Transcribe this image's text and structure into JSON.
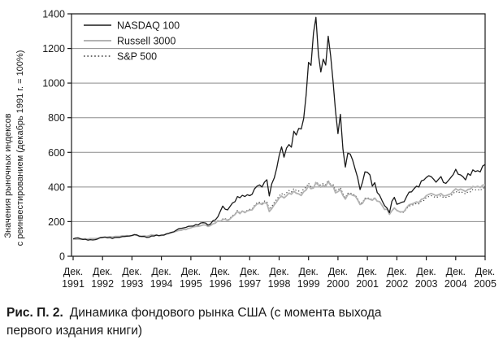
{
  "caption": {
    "label": "Рис. П. 2.",
    "line1": "Динамика фондового рынка США (с момента выхода",
    "line2": "первого издания книги)"
  },
  "chart_data": {
    "type": "line",
    "title": "",
    "ylabel_line1": "Значения рыночных индексов",
    "ylabel_line2": "с реинвестированием (декабрь 1991 г. = 100%)",
    "x_tick_prefix": "Дек.",
    "x_tick_years": [
      "1991",
      "1992",
      "1993",
      "1994",
      "1995",
      "1996",
      "1997",
      "1998",
      "1999",
      "2000",
      "2001",
      "2002",
      "2003",
      "2004",
      "2005"
    ],
    "y_ticks": [
      0,
      200,
      400,
      600,
      800,
      1000,
      1200,
      1400
    ],
    "ylim": [
      0,
      1400
    ],
    "x_frequency": "monthly",
    "x_range": [
      "Дек. 1991",
      "Дек. 2005"
    ],
    "grid": "horizontal",
    "legend_position": "top-left",
    "frame_color": "#1a1a1a",
    "gridline_color": "#8c8c8c",
    "series": [
      {
        "name": "NASDAQ 100",
        "id": "nasdaq-100",
        "style": "solid",
        "color": "#1a1a1a",
        "width": 1.3,
        "values": [
          100,
          105,
          106,
          101,
          97,
          98,
          93,
          96,
          94,
          96,
          100,
          107,
          109,
          111,
          106,
          108,
          103,
          108,
          109,
          109,
          113,
          114,
          116,
          117,
          120,
          125,
          123,
          116,
          114,
          114,
          109,
          110,
          117,
          117,
          122,
          119,
          122,
          122,
          129,
          133,
          138,
          141,
          150,
          159,
          161,
          164,
          167,
          173,
          174,
          175,
          183,
          181,
          192,
          194,
          192,
          180,
          186,
          205,
          210,
          228,
          260,
          290,
          272,
          268,
          288,
          308,
          315,
          345,
          338,
          352,
          345,
          355,
          350,
          358,
          390,
          405,
          412,
          400,
          428,
          442,
          348,
          418,
          452,
          508,
          580,
          632,
          572,
          625,
          645,
          630,
          722,
          700,
          738,
          735,
          795,
          930,
          1120,
          1102,
          1290,
          1380,
          1167,
          1064,
          1138,
          1104,
          1271,
          1157,
          1008,
          838,
          708,
          820,
          620,
          515,
          595,
          590,
          555,
          502,
          455,
          385,
          428,
          487,
          485,
          470,
          405,
          425,
          368,
          352,
          320,
          292,
          278,
          252,
          318,
          340,
          300,
          305,
          312,
          315,
          345,
          370,
          372,
          390,
          405,
          400,
          435,
          440,
          455,
          465,
          460,
          445,
          428,
          445,
          460,
          426,
          421,
          437,
          455,
          472,
          502,
          474,
          470,
          459,
          441,
          478,
          467,
          499,
          489,
          494,
          487,
          521,
          530
        ]
      },
      {
        "name": "Russell 3000",
        "id": "russell-3000",
        "style": "solid",
        "color": "#b3b3b3",
        "width": 1.8,
        "values": [
          100,
          98,
          99,
          97,
          100,
          101,
          99,
          103,
          102,
          103,
          104,
          107,
          109,
          110,
          111,
          113,
          111,
          114,
          114,
          114,
          118,
          118,
          119,
          118,
          120,
          124,
          121,
          115,
          116,
          118,
          115,
          119,
          124,
          121,
          123,
          119,
          120,
          123,
          128,
          131,
          135,
          140,
          144,
          149,
          150,
          155,
          154,
          161,
          164,
          170,
          172,
          173,
          176,
          181,
          181,
          172,
          177,
          187,
          191,
          205,
          201,
          212,
          214,
          205,
          216,
          230,
          241,
          259,
          246,
          261,
          252,
          262,
          266,
          268,
          288,
          302,
          305,
          299,
          310,
          305,
          258,
          275,
          297,
          315,
          336,
          348,
          337,
          349,
          365,
          358,
          376,
          364,
          360,
          351,
          372,
          383,
          407,
          390,
          395,
          425,
          411,
          399,
          410,
          403,
          432,
          409,
          405,
          366,
          373,
          385,
          351,
          330,
          356,
          360,
          352,
          348,
          326,
          299,
          306,
          330,
          334,
          329,
          323,
          336,
          318,
          315,
          293,
          270,
          272,
          242,
          263,
          279,
          265,
          258,
          256,
          259,
          281,
          297,
          301,
          307,
          314,
          310,
          329,
          333,
          350,
          357,
          362,
          357,
          350,
          355,
          362,
          349,
          350,
          355,
          361,
          377,
          390,
          381,
          388,
          382,
          374,
          386,
          388,
          403,
          399,
          404,
          397,
          411,
          412
        ]
      },
      {
        "name": "S&P 500",
        "id": "sp-500",
        "style": "dotted",
        "color": "#3a3a3a",
        "width": 1.1,
        "values": [
          100,
          98,
          99,
          98,
          100,
          101,
          99,
          103,
          101,
          103,
          103,
          106,
          108,
          109,
          110,
          112,
          110,
          113,
          113,
          112,
          117,
          116,
          118,
          117,
          119,
          123,
          119,
          114,
          116,
          117,
          115,
          118,
          123,
          120,
          123,
          118,
          120,
          123,
          128,
          132,
          136,
          141,
          144,
          149,
          150,
          156,
          155,
          162,
          165,
          171,
          172,
          174,
          177,
          181,
          182,
          174,
          178,
          188,
          193,
          207,
          203,
          216,
          218,
          209,
          221,
          235,
          245,
          265,
          250,
          263,
          255,
          266,
          271,
          274,
          294,
          309,
          312,
          306,
          319,
          316,
          270,
          287,
          311,
          329,
          348,
          363,
          352,
          366,
          380,
          371,
          391,
          379,
          377,
          367,
          390,
          398,
          422,
          400,
          393,
          431,
          418,
          410,
          420,
          413,
          439,
          416,
          414,
          381,
          383,
          397,
          361,
          338,
          364,
          366,
          357,
          354,
          332,
          305,
          311,
          335,
          338,
          333,
          326,
          339,
          318,
          316,
          293,
          270,
          272,
          243,
          264,
          280,
          263,
          256,
          252,
          255,
          276,
          290,
          294,
          299,
          305,
          302,
          319,
          322,
          339,
          345,
          350,
          344,
          339,
          344,
          350,
          339,
          340,
          344,
          349,
          363,
          375,
          366,
          374,
          367,
          360,
          372,
          372,
          386,
          383,
          386,
          379,
          394,
          394
        ]
      }
    ]
  }
}
